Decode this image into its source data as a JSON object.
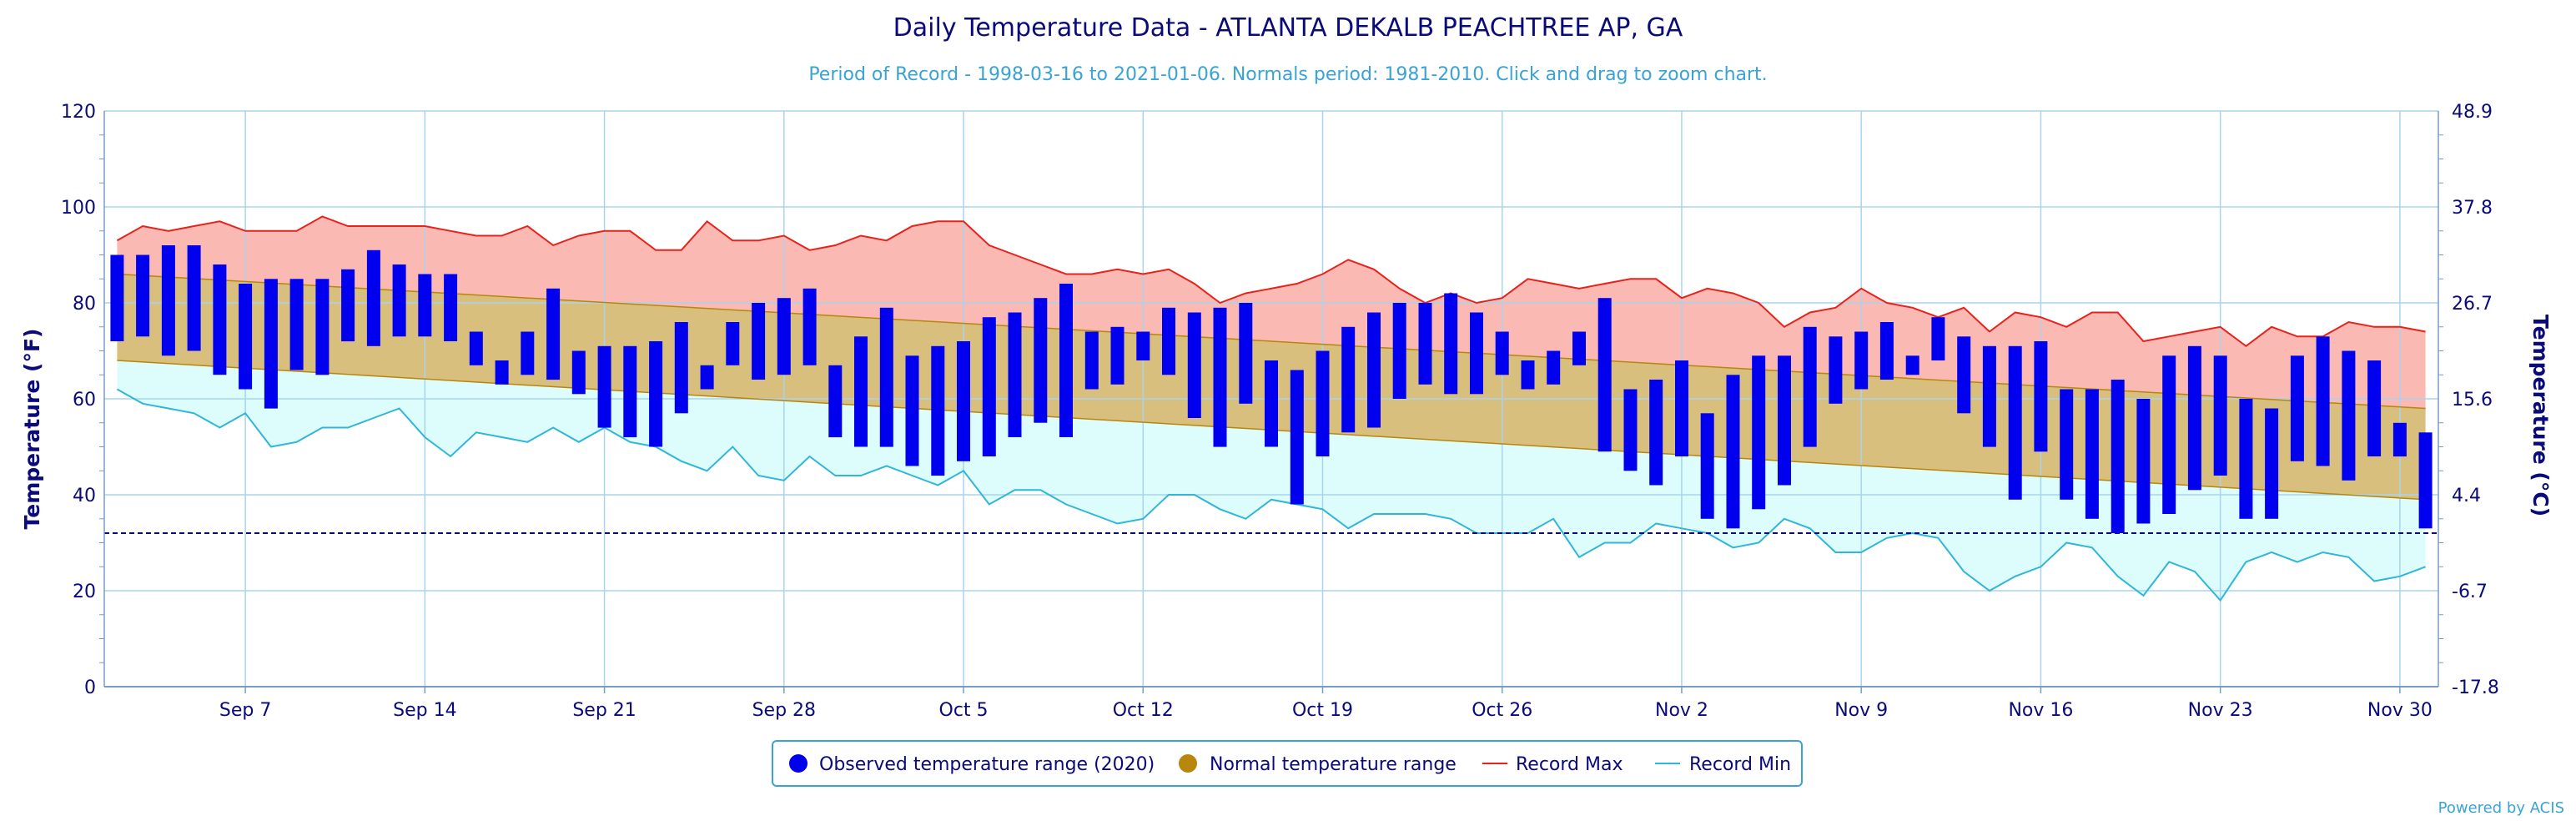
{
  "chart_data": {
    "type": "bar",
    "title": "Daily Temperature Data - ATLANTA DEKALB PEACHTREE AP, GA",
    "subtitle": "Period of Record - 1998-03-16 to 2021-01-06. Normals period: 1981-2010. Click and drag to zoom chart.",
    "ylabel": "Temperature (°F)",
    "ylabel_right": "Temperature (°C)",
    "ylim": [
      0,
      120
    ],
    "yticks": [
      0,
      20,
      40,
      60,
      80,
      100,
      120
    ],
    "yticks_right": [
      "-17.8",
      "-6.7",
      "4.4",
      "15.6",
      "26.7",
      "37.8",
      "48.9"
    ],
    "xticks": [
      {
        "day": 6,
        "label": "Sep 7"
      },
      {
        "day": 13,
        "label": "Sep 14"
      },
      {
        "day": 20,
        "label": "Sep 21"
      },
      {
        "day": 27,
        "label": "Sep 28"
      },
      {
        "day": 34,
        "label": "Oct 5"
      },
      {
        "day": 41,
        "label": "Oct 12"
      },
      {
        "day": 48,
        "label": "Oct 19"
      },
      {
        "day": 55,
        "label": "Oct 26"
      },
      {
        "day": 62,
        "label": "Nov 2"
      },
      {
        "day": 69,
        "label": "Nov 9"
      },
      {
        "day": 76,
        "label": "Nov 16"
      },
      {
        "day": 83,
        "label": "Nov 23"
      },
      {
        "day": 90,
        "label": "Nov 30"
      }
    ],
    "freezing_line": 32,
    "legend": {
      "placement": "bottom",
      "items": [
        {
          "label": "Observed temperature range (2020)",
          "color": "#0000ee",
          "symbol": "circle"
        },
        {
          "label": "Normal temperature range",
          "color": "#b8860b",
          "symbol": "circle"
        },
        {
          "label": "Record Max",
          "color": "#e8221b",
          "symbol": "line"
        },
        {
          "label": "Record Min",
          "color": "#2fb6d8",
          "symbol": "line"
        }
      ]
    },
    "colors": {
      "observed": "#0000ee",
      "normal_fill": "#d9bf7e",
      "normal_line": "#b8860b",
      "record_max_line": "#e8221b",
      "record_max_fill": "#fbb9b4",
      "record_min_line": "#2fb6d8",
      "record_min_fill": "#dcfdfb",
      "grid": "#a8d4ee",
      "text": "#0a0a7a"
    },
    "normal_range": {
      "start_day": 1,
      "end_day": 91,
      "high_start": 86,
      "high_end": 58,
      "low_start": 68,
      "low_end": 39
    },
    "observed": [
      [
        1,
        72,
        90
      ],
      [
        2,
        73,
        90
      ],
      [
        3,
        69,
        92
      ],
      [
        4,
        70,
        92
      ],
      [
        5,
        65,
        88
      ],
      [
        6,
        62,
        84
      ],
      [
        7,
        58,
        85
      ],
      [
        8,
        66,
        85
      ],
      [
        9,
        65,
        85
      ],
      [
        10,
        72,
        87
      ],
      [
        11,
        71,
        91
      ],
      [
        12,
        73,
        88
      ],
      [
        13,
        73,
        86
      ],
      [
        14,
        72,
        86
      ],
      [
        15,
        67,
        74
      ],
      [
        16,
        63,
        68
      ],
      [
        17,
        65,
        74
      ],
      [
        18,
        64,
        83
      ],
      [
        19,
        61,
        70
      ],
      [
        20,
        54,
        71
      ],
      [
        21,
        52,
        71
      ],
      [
        22,
        50,
        72
      ],
      [
        23,
        57,
        76
      ],
      [
        24,
        62,
        67
      ],
      [
        25,
        67,
        76
      ],
      [
        26,
        64,
        80
      ],
      [
        27,
        65,
        81
      ],
      [
        28,
        67,
        83
      ],
      [
        29,
        52,
        67
      ],
      [
        30,
        50,
        73
      ],
      [
        31,
        50,
        79
      ],
      [
        32,
        46,
        69
      ],
      [
        33,
        44,
        71
      ],
      [
        34,
        47,
        72
      ],
      [
        35,
        48,
        77
      ],
      [
        36,
        52,
        78
      ],
      [
        37,
        55,
        81
      ],
      [
        38,
        52,
        84
      ],
      [
        39,
        62,
        74
      ],
      [
        40,
        63,
        75
      ],
      [
        41,
        68,
        74
      ],
      [
        42,
        65,
        79
      ],
      [
        43,
        56,
        78
      ],
      [
        44,
        50,
        79
      ],
      [
        45,
        59,
        80
      ],
      [
        46,
        50,
        68
      ],
      [
        47,
        38,
        66
      ],
      [
        48,
        48,
        70
      ],
      [
        49,
        53,
        75
      ],
      [
        50,
        54,
        78
      ],
      [
        51,
        60,
        80
      ],
      [
        52,
        63,
        80
      ],
      [
        53,
        61,
        82
      ],
      [
        54,
        61,
        78
      ],
      [
        55,
        65,
        74
      ],
      [
        56,
        62,
        68
      ],
      [
        57,
        63,
        70
      ],
      [
        58,
        67,
        74
      ],
      [
        59,
        49,
        81
      ],
      [
        60,
        45,
        62
      ],
      [
        61,
        42,
        64
      ],
      [
        62,
        48,
        68
      ],
      [
        63,
        35,
        57
      ],
      [
        64,
        33,
        65
      ],
      [
        65,
        37,
        69
      ],
      [
        66,
        42,
        69
      ],
      [
        67,
        50,
        75
      ],
      [
        68,
        59,
        73
      ],
      [
        69,
        62,
        74
      ],
      [
        70,
        64,
        76
      ],
      [
        71,
        65,
        69
      ],
      [
        72,
        68,
        77
      ],
      [
        73,
        57,
        73
      ],
      [
        74,
        50,
        71
      ],
      [
        75,
        39,
        71
      ],
      [
        76,
        49,
        72
      ],
      [
        77,
        39,
        62
      ],
      [
        78,
        35,
        62
      ],
      [
        79,
        32,
        64
      ],
      [
        80,
        34,
        60
      ],
      [
        81,
        36,
        69
      ],
      [
        82,
        41,
        71
      ],
      [
        83,
        44,
        69
      ],
      [
        84,
        35,
        60
      ],
      [
        85,
        35,
        58
      ],
      [
        86,
        47,
        69
      ],
      [
        87,
        46,
        73
      ],
      [
        88,
        43,
        70
      ],
      [
        89,
        48,
        68
      ],
      [
        90,
        48,
        55
      ],
      [
        91,
        33,
        53
      ]
    ],
    "record_max": [
      [
        1,
        93
      ],
      [
        2,
        96
      ],
      [
        3,
        95
      ],
      [
        4,
        96
      ],
      [
        5,
        97
      ],
      [
        6,
        95
      ],
      [
        7,
        95
      ],
      [
        8,
        95
      ],
      [
        9,
        98
      ],
      [
        10,
        96
      ],
      [
        11,
        96
      ],
      [
        12,
        96
      ],
      [
        13,
        96
      ],
      [
        14,
        95
      ],
      [
        15,
        94
      ],
      [
        16,
        94
      ],
      [
        17,
        96
      ],
      [
        18,
        92
      ],
      [
        19,
        94
      ],
      [
        20,
        95
      ],
      [
        21,
        95
      ],
      [
        22,
        91
      ],
      [
        23,
        91
      ],
      [
        24,
        97
      ],
      [
        25,
        93
      ],
      [
        26,
        93
      ],
      [
        27,
        94
      ],
      [
        28,
        91
      ],
      [
        29,
        92
      ],
      [
        30,
        94
      ],
      [
        31,
        93
      ],
      [
        32,
        96
      ],
      [
        33,
        97
      ],
      [
        34,
        97
      ],
      [
        35,
        92
      ],
      [
        36,
        90
      ],
      [
        37,
        88
      ],
      [
        38,
        86
      ],
      [
        39,
        86
      ],
      [
        40,
        87
      ],
      [
        41,
        86
      ],
      [
        42,
        87
      ],
      [
        43,
        84
      ],
      [
        44,
        80
      ],
      [
        45,
        82
      ],
      [
        46,
        83
      ],
      [
        47,
        84
      ],
      [
        48,
        86
      ],
      [
        49,
        89
      ],
      [
        50,
        87
      ],
      [
        51,
        83
      ],
      [
        52,
        80
      ],
      [
        53,
        82
      ],
      [
        54,
        80
      ],
      [
        55,
        81
      ],
      [
        56,
        85
      ],
      [
        57,
        84
      ],
      [
        58,
        83
      ],
      [
        59,
        84
      ],
      [
        60,
        85
      ],
      [
        61,
        85
      ],
      [
        62,
        81
      ],
      [
        63,
        83
      ],
      [
        64,
        82
      ],
      [
        65,
        80
      ],
      [
        66,
        75
      ],
      [
        67,
        78
      ],
      [
        68,
        79
      ],
      [
        69,
        83
      ],
      [
        70,
        80
      ],
      [
        71,
        79
      ],
      [
        72,
        77
      ],
      [
        73,
        79
      ],
      [
        74,
        74
      ],
      [
        75,
        78
      ],
      [
        76,
        77
      ],
      [
        77,
        75
      ],
      [
        78,
        78
      ],
      [
        79,
        78
      ],
      [
        80,
        72
      ],
      [
        81,
        73
      ],
      [
        82,
        74
      ],
      [
        83,
        75
      ],
      [
        84,
        71
      ],
      [
        85,
        75
      ],
      [
        86,
        73
      ],
      [
        87,
        73
      ],
      [
        88,
        76
      ],
      [
        89,
        75
      ],
      [
        90,
        75
      ],
      [
        91,
        74
      ]
    ],
    "record_min": [
      [
        1,
        62
      ],
      [
        2,
        59
      ],
      [
        3,
        58
      ],
      [
        4,
        57
      ],
      [
        5,
        54
      ],
      [
        6,
        57
      ],
      [
        7,
        50
      ],
      [
        8,
        51
      ],
      [
        9,
        54
      ],
      [
        10,
        54
      ],
      [
        11,
        56
      ],
      [
        12,
        58
      ],
      [
        13,
        52
      ],
      [
        14,
        48
      ],
      [
        15,
        53
      ],
      [
        16,
        52
      ],
      [
        17,
        51
      ],
      [
        18,
        54
      ],
      [
        19,
        51
      ],
      [
        20,
        54
      ],
      [
        21,
        51
      ],
      [
        22,
        50
      ],
      [
        23,
        47
      ],
      [
        24,
        45
      ],
      [
        25,
        50
      ],
      [
        26,
        44
      ],
      [
        27,
        43
      ],
      [
        28,
        48
      ],
      [
        29,
        44
      ],
      [
        30,
        44
      ],
      [
        31,
        46
      ],
      [
        32,
        44
      ],
      [
        33,
        42
      ],
      [
        34,
        45
      ],
      [
        35,
        38
      ],
      [
        36,
        41
      ],
      [
        37,
        41
      ],
      [
        38,
        38
      ],
      [
        39,
        36
      ],
      [
        40,
        34
      ],
      [
        41,
        35
      ],
      [
        42,
        40
      ],
      [
        43,
        40
      ],
      [
        44,
        37
      ],
      [
        45,
        35
      ],
      [
        46,
        39
      ],
      [
        47,
        38
      ],
      [
        48,
        37
      ],
      [
        49,
        33
      ],
      [
        50,
        36
      ],
      [
        51,
        36
      ],
      [
        52,
        36
      ],
      [
        53,
        35
      ],
      [
        54,
        32
      ],
      [
        55,
        32
      ],
      [
        56,
        32
      ],
      [
        57,
        35
      ],
      [
        58,
        27
      ],
      [
        59,
        30
      ],
      [
        60,
        30
      ],
      [
        61,
        34
      ],
      [
        62,
        33
      ],
      [
        63,
        32
      ],
      [
        64,
        29
      ],
      [
        65,
        30
      ],
      [
        66,
        35
      ],
      [
        67,
        33
      ],
      [
        68,
        28
      ],
      [
        69,
        28
      ],
      [
        70,
        31
      ],
      [
        71,
        32
      ],
      [
        72,
        31
      ],
      [
        73,
        24
      ],
      [
        74,
        20
      ],
      [
        75,
        23
      ],
      [
        76,
        25
      ],
      [
        77,
        30
      ],
      [
        78,
        29
      ],
      [
        79,
        23
      ],
      [
        80,
        19
      ],
      [
        81,
        26
      ],
      [
        82,
        24
      ],
      [
        83,
        18
      ],
      [
        84,
        26
      ],
      [
        85,
        28
      ],
      [
        86,
        26
      ],
      [
        87,
        28
      ],
      [
        88,
        27
      ],
      [
        89,
        22
      ],
      [
        90,
        23
      ],
      [
        91,
        25
      ]
    ]
  },
  "credit": "Powered by ACIS"
}
